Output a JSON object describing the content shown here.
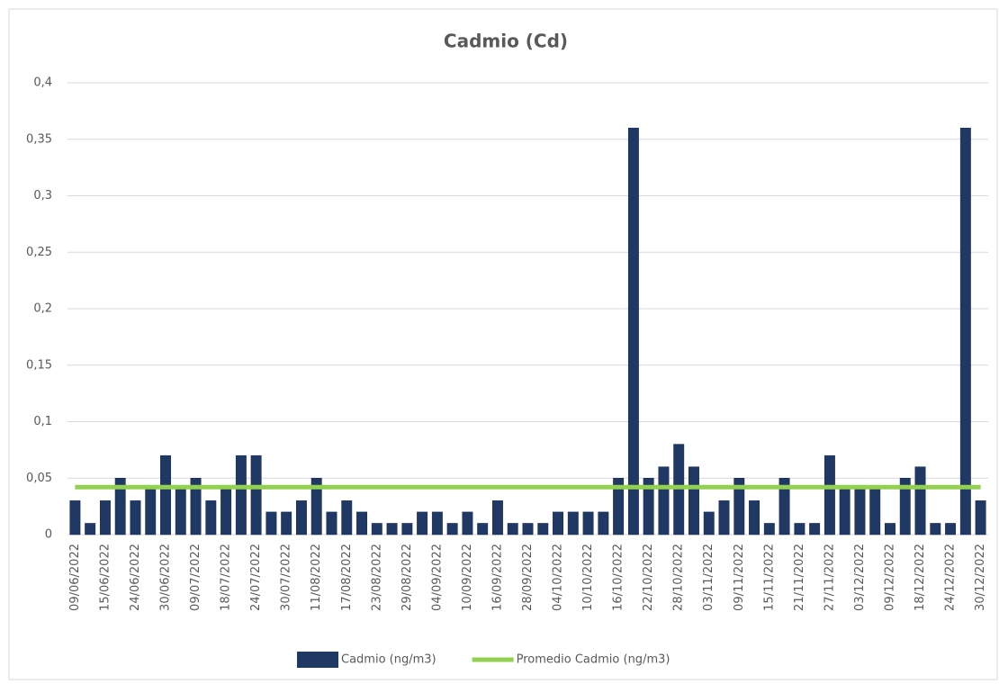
{
  "chart_data": {
    "type": "bar",
    "title": "Cadmio (Cd)",
    "categories": [
      "09/06/2022",
      null,
      "15/06/2022",
      null,
      "24/06/2022",
      null,
      "30/06/2022",
      null,
      "09/07/2022",
      null,
      "18/07/2022",
      null,
      "24/07/2022",
      null,
      "30/07/2022",
      null,
      "11/08/2022",
      null,
      "17/08/2022",
      null,
      "23/08/2022",
      null,
      "29/08/2022",
      null,
      "04/09/2022",
      null,
      "10/09/2022",
      null,
      "16/09/2022",
      null,
      "28/09/2022",
      null,
      "04/10/2022",
      null,
      "10/10/2022",
      null,
      "16/10/2022",
      null,
      "22/10/2022",
      null,
      "28/10/2022",
      null,
      "03/11/2022",
      null,
      "09/11/2022",
      null,
      "15/11/2022",
      null,
      "21/11/2022",
      null,
      "27/11/2022",
      null,
      "03/12/2022",
      null,
      "09/12/2022",
      null,
      "18/12/2022",
      null,
      "24/12/2022",
      null,
      "30/12/2022"
    ],
    "series": [
      {
        "name": "Cadmio (ng/m3)",
        "type": "bar",
        "color": "#1f3864",
        "values": [
          0.03,
          0.01,
          0.03,
          0.05,
          0.03,
          0.04,
          0.07,
          0.04,
          0.05,
          0.03,
          0.04,
          0.07,
          0.07,
          0.02,
          0.02,
          0.03,
          0.05,
          0.02,
          0.03,
          0.02,
          0.01,
          0.01,
          0.01,
          0.02,
          0.02,
          0.01,
          0.02,
          0.01,
          0.03,
          0.01,
          0.01,
          0.01,
          0.02,
          0.02,
          0.02,
          0.02,
          0.05,
          0.36,
          0.05,
          0.06,
          0.08,
          0.06,
          0.02,
          0.03,
          0.05,
          0.03,
          0.01,
          0.05,
          0.01,
          0.01,
          0.07,
          0.04,
          0.04,
          0.04,
          0.01,
          0.05,
          0.06,
          0.01,
          0.01,
          0.36,
          0.03
        ]
      },
      {
        "name": "Promedio Cadmio (ng/m3)",
        "type": "line",
        "color": "#92d050",
        "values": [
          0.042,
          0.042,
          0.042,
          0.042,
          0.042,
          0.042,
          0.042,
          0.042,
          0.042,
          0.042,
          0.042,
          0.042,
          0.042,
          0.042,
          0.042,
          0.042,
          0.042,
          0.042,
          0.042,
          0.042,
          0.042,
          0.042,
          0.042,
          0.042,
          0.042,
          0.042,
          0.042,
          0.042,
          0.042,
          0.042,
          0.042,
          0.042,
          0.042,
          0.042,
          0.042,
          0.042,
          0.042,
          0.042,
          0.042,
          0.042,
          0.042,
          0.042,
          0.042,
          0.042,
          0.042,
          0.042,
          0.042,
          0.042,
          0.042,
          0.042,
          0.042,
          0.042,
          0.042,
          0.042,
          0.042,
          0.042,
          0.042,
          0.042,
          0.042,
          0.042,
          0.042
        ]
      }
    ],
    "ylim": [
      0,
      0.4
    ],
    "yticks": [
      0,
      {
        "value": 0.05,
        "label": "0,05"
      },
      {
        "value": 0.1,
        "label": "0,1"
      },
      {
        "value": 0.15,
        "label": "0,15"
      },
      {
        "value": 0.2,
        "label": "0,2"
      },
      {
        "value": 0.25,
        "label": "0,25"
      },
      {
        "value": 0.3,
        "label": "0,3"
      },
      {
        "value": 0.35,
        "label": "0,35"
      },
      {
        "value": 0.4,
        "label": "0,4"
      }
    ],
    "grid": true,
    "legend": "bottom"
  }
}
